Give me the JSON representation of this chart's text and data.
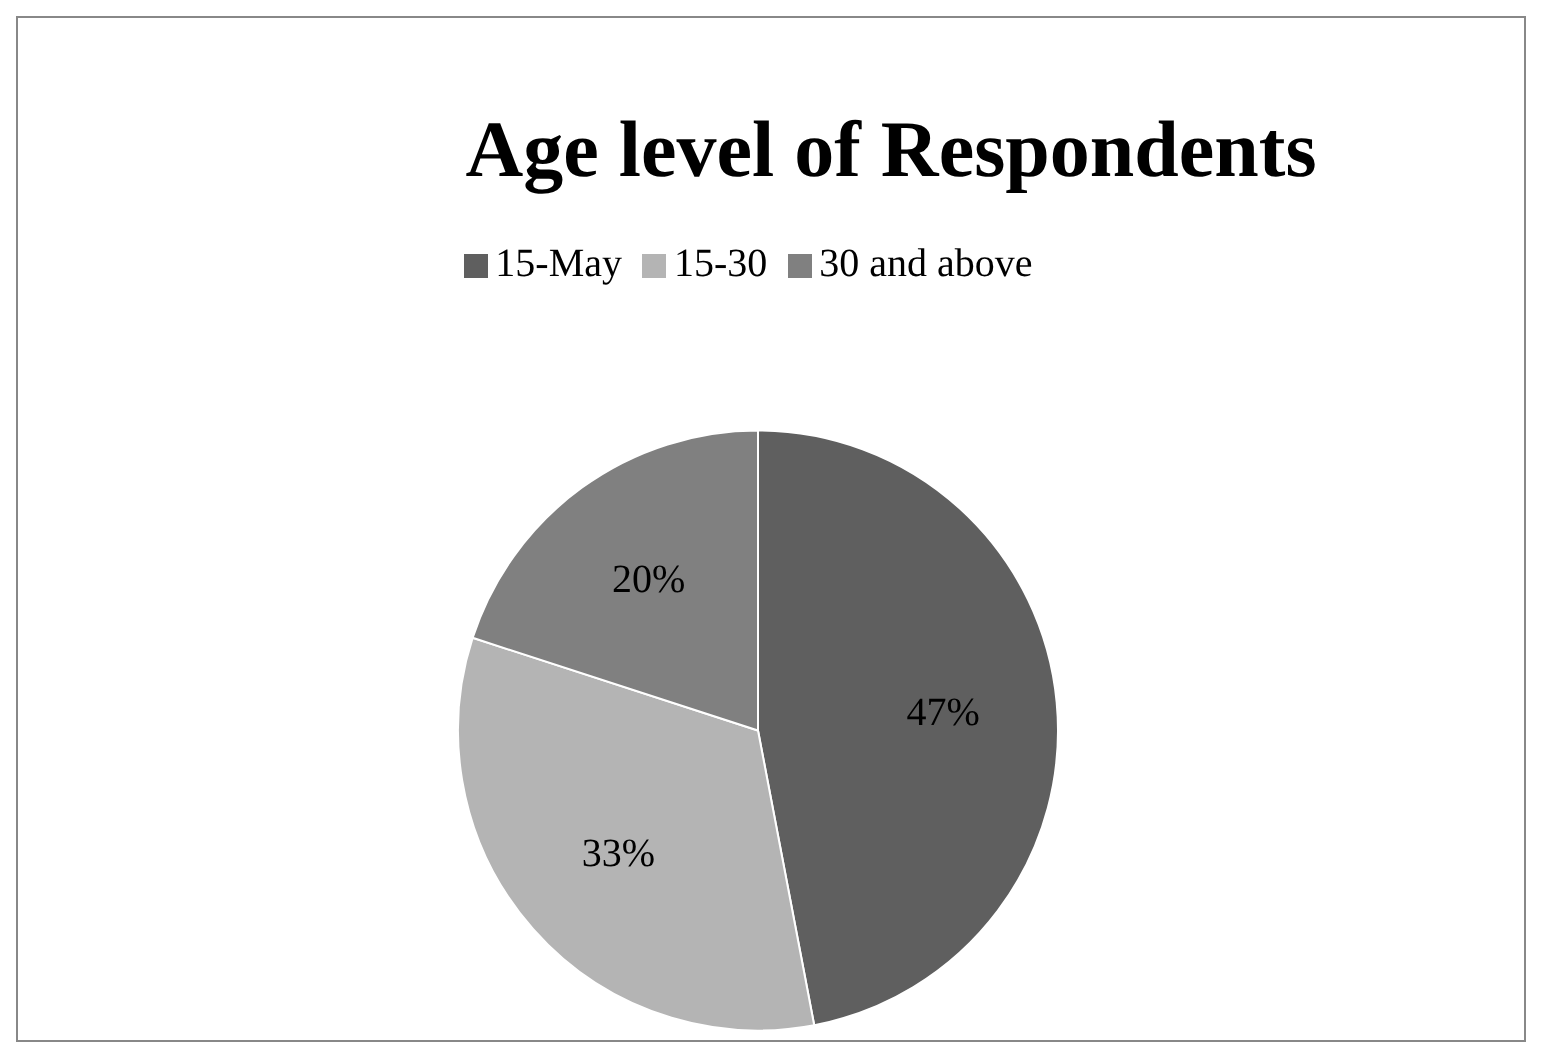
{
  "chart_data": {
    "type": "pie",
    "title": "Age level of Respondents",
    "categories": [
      "15-May",
      "15-30",
      "30 and above"
    ],
    "values": [
      47,
      33,
      20
    ],
    "colors": [
      "#5f5f5f",
      "#b4b4b4",
      "#808080"
    ],
    "value_labels": [
      "47%",
      "33%",
      "20%"
    ],
    "legend": "top"
  }
}
